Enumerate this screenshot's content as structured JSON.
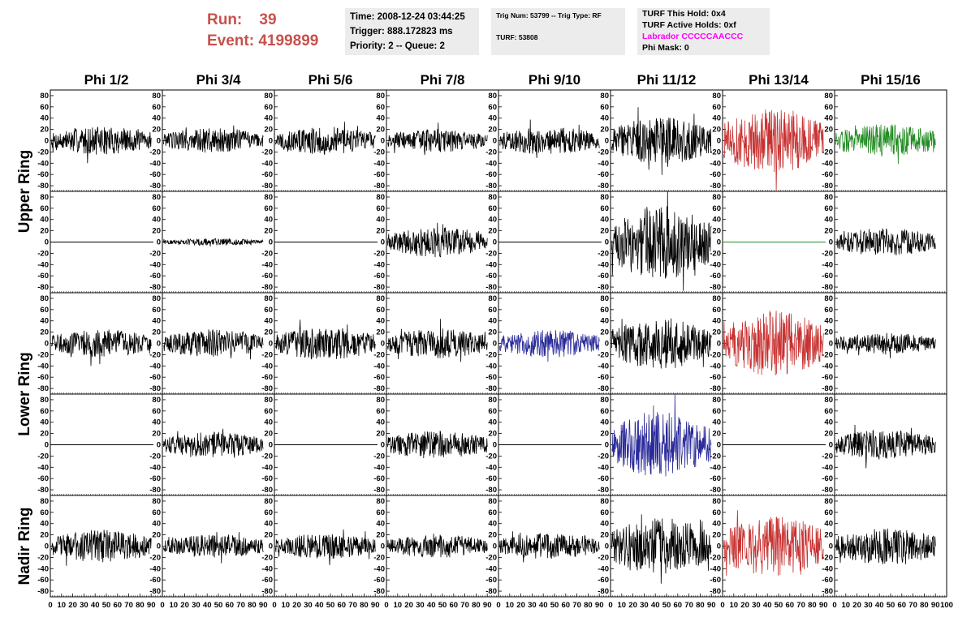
{
  "header": {
    "run_label": "Run:",
    "run_value": "39",
    "event_label": "Event:",
    "event_value": "4199899"
  },
  "info_time": {
    "line1": "Time: 2008-12-24 03:44:25",
    "line2": "Trigger: 888.172823 ms",
    "line3": "Priority: 2 -- Queue: 2"
  },
  "info_trig": {
    "line1": "Trig Num: 53799 -- Trig Type: RF",
    "line2": "TURF: 53808"
  },
  "info_turf": {
    "line1": "TURF This Hold: 0x4",
    "line2": "TURF Active Holds: 0xf",
    "line3": "Labrador CCCCCAACCC",
    "line4": "Phi Mask: 0"
  },
  "chart_data": {
    "type": "line",
    "columns": [
      "Phi 1/2",
      "Phi 3/4",
      "Phi 5/6",
      "Phi 7/8",
      "Phi 9/10",
      "Phi 11/12",
      "Phi 13/14",
      "Phi 15/16"
    ],
    "rings": [
      "Upper Ring",
      "Lower Ring",
      "Nadir Ring"
    ],
    "xlim": [
      0,
      100
    ],
    "ylim": [
      -90,
      90
    ],
    "y_ticks": [
      -80,
      -60,
      -40,
      -20,
      0,
      20,
      40,
      60,
      80
    ],
    "x_ticks": [
      0,
      10,
      20,
      30,
      40,
      50,
      60,
      70,
      80,
      90,
      100
    ],
    "colors": {
      "default": "#000000",
      "red": "#c83232",
      "green": "#228b22",
      "blue": "#2a2a9a"
    },
    "panels": [
      [
        {
          "color": "default",
          "amplitude": 12,
          "flat": false
        },
        {
          "color": "default",
          "amplitude": 11,
          "flat": false
        },
        {
          "color": "default",
          "amplitude": 12,
          "flat": false
        },
        {
          "color": "default",
          "amplitude": 10,
          "flat": false
        },
        {
          "color": "default",
          "amplitude": 12,
          "flat": false
        },
        {
          "color": "default",
          "amplitude": 20,
          "flat": false
        },
        {
          "color": "red",
          "amplitude": 28,
          "flat": false
        },
        {
          "color": "green",
          "amplitude": 14,
          "flat": false
        }
      ],
      [
        {
          "color": "default",
          "amplitude": 0,
          "flat": true
        },
        {
          "color": "default",
          "amplitude": 3,
          "flat": false
        },
        {
          "color": "default",
          "amplitude": 0,
          "flat": true
        },
        {
          "color": "default",
          "amplitude": 13,
          "flat": false
        },
        {
          "color": "default",
          "amplitude": 0,
          "flat": true
        },
        {
          "color": "default",
          "amplitude": 32,
          "flat": false
        },
        {
          "color": "green",
          "amplitude": 0,
          "flat": true
        },
        {
          "color": "default",
          "amplitude": 12,
          "flat": false
        }
      ],
      [
        {
          "color": "default",
          "amplitude": 12,
          "flat": false
        },
        {
          "color": "default",
          "amplitude": 12,
          "flat": false
        },
        {
          "color": "default",
          "amplitude": 14,
          "flat": false
        },
        {
          "color": "default",
          "amplitude": 13,
          "flat": false
        },
        {
          "color": "blue",
          "amplitude": 12,
          "flat": false
        },
        {
          "color": "default",
          "amplitude": 22,
          "flat": false
        },
        {
          "color": "red",
          "amplitude": 28,
          "flat": false
        },
        {
          "color": "default",
          "amplitude": 9,
          "flat": false
        }
      ],
      [
        {
          "color": "default",
          "amplitude": 0,
          "flat": true
        },
        {
          "color": "default",
          "amplitude": 11,
          "flat": false
        },
        {
          "color": "default",
          "amplitude": 0,
          "flat": true
        },
        {
          "color": "default",
          "amplitude": 12,
          "flat": false
        },
        {
          "color": "default",
          "amplitude": 0,
          "flat": true
        },
        {
          "color": "blue",
          "amplitude": 28,
          "flat": false
        },
        {
          "color": "default",
          "amplitude": 0,
          "flat": true
        },
        {
          "color": "default",
          "amplitude": 13,
          "flat": false
        }
      ],
      [
        {
          "color": "default",
          "amplitude": 14,
          "flat": false
        },
        {
          "color": "default",
          "amplitude": 10,
          "flat": false
        },
        {
          "color": "default",
          "amplitude": 11,
          "flat": false
        },
        {
          "color": "default",
          "amplitude": 10,
          "flat": false
        },
        {
          "color": "default",
          "amplitude": 11,
          "flat": false
        },
        {
          "color": "default",
          "amplitude": 24,
          "flat": false
        },
        {
          "color": "red",
          "amplitude": 26,
          "flat": false
        },
        {
          "color": "default",
          "amplitude": 16,
          "flat": false
        }
      ]
    ]
  }
}
